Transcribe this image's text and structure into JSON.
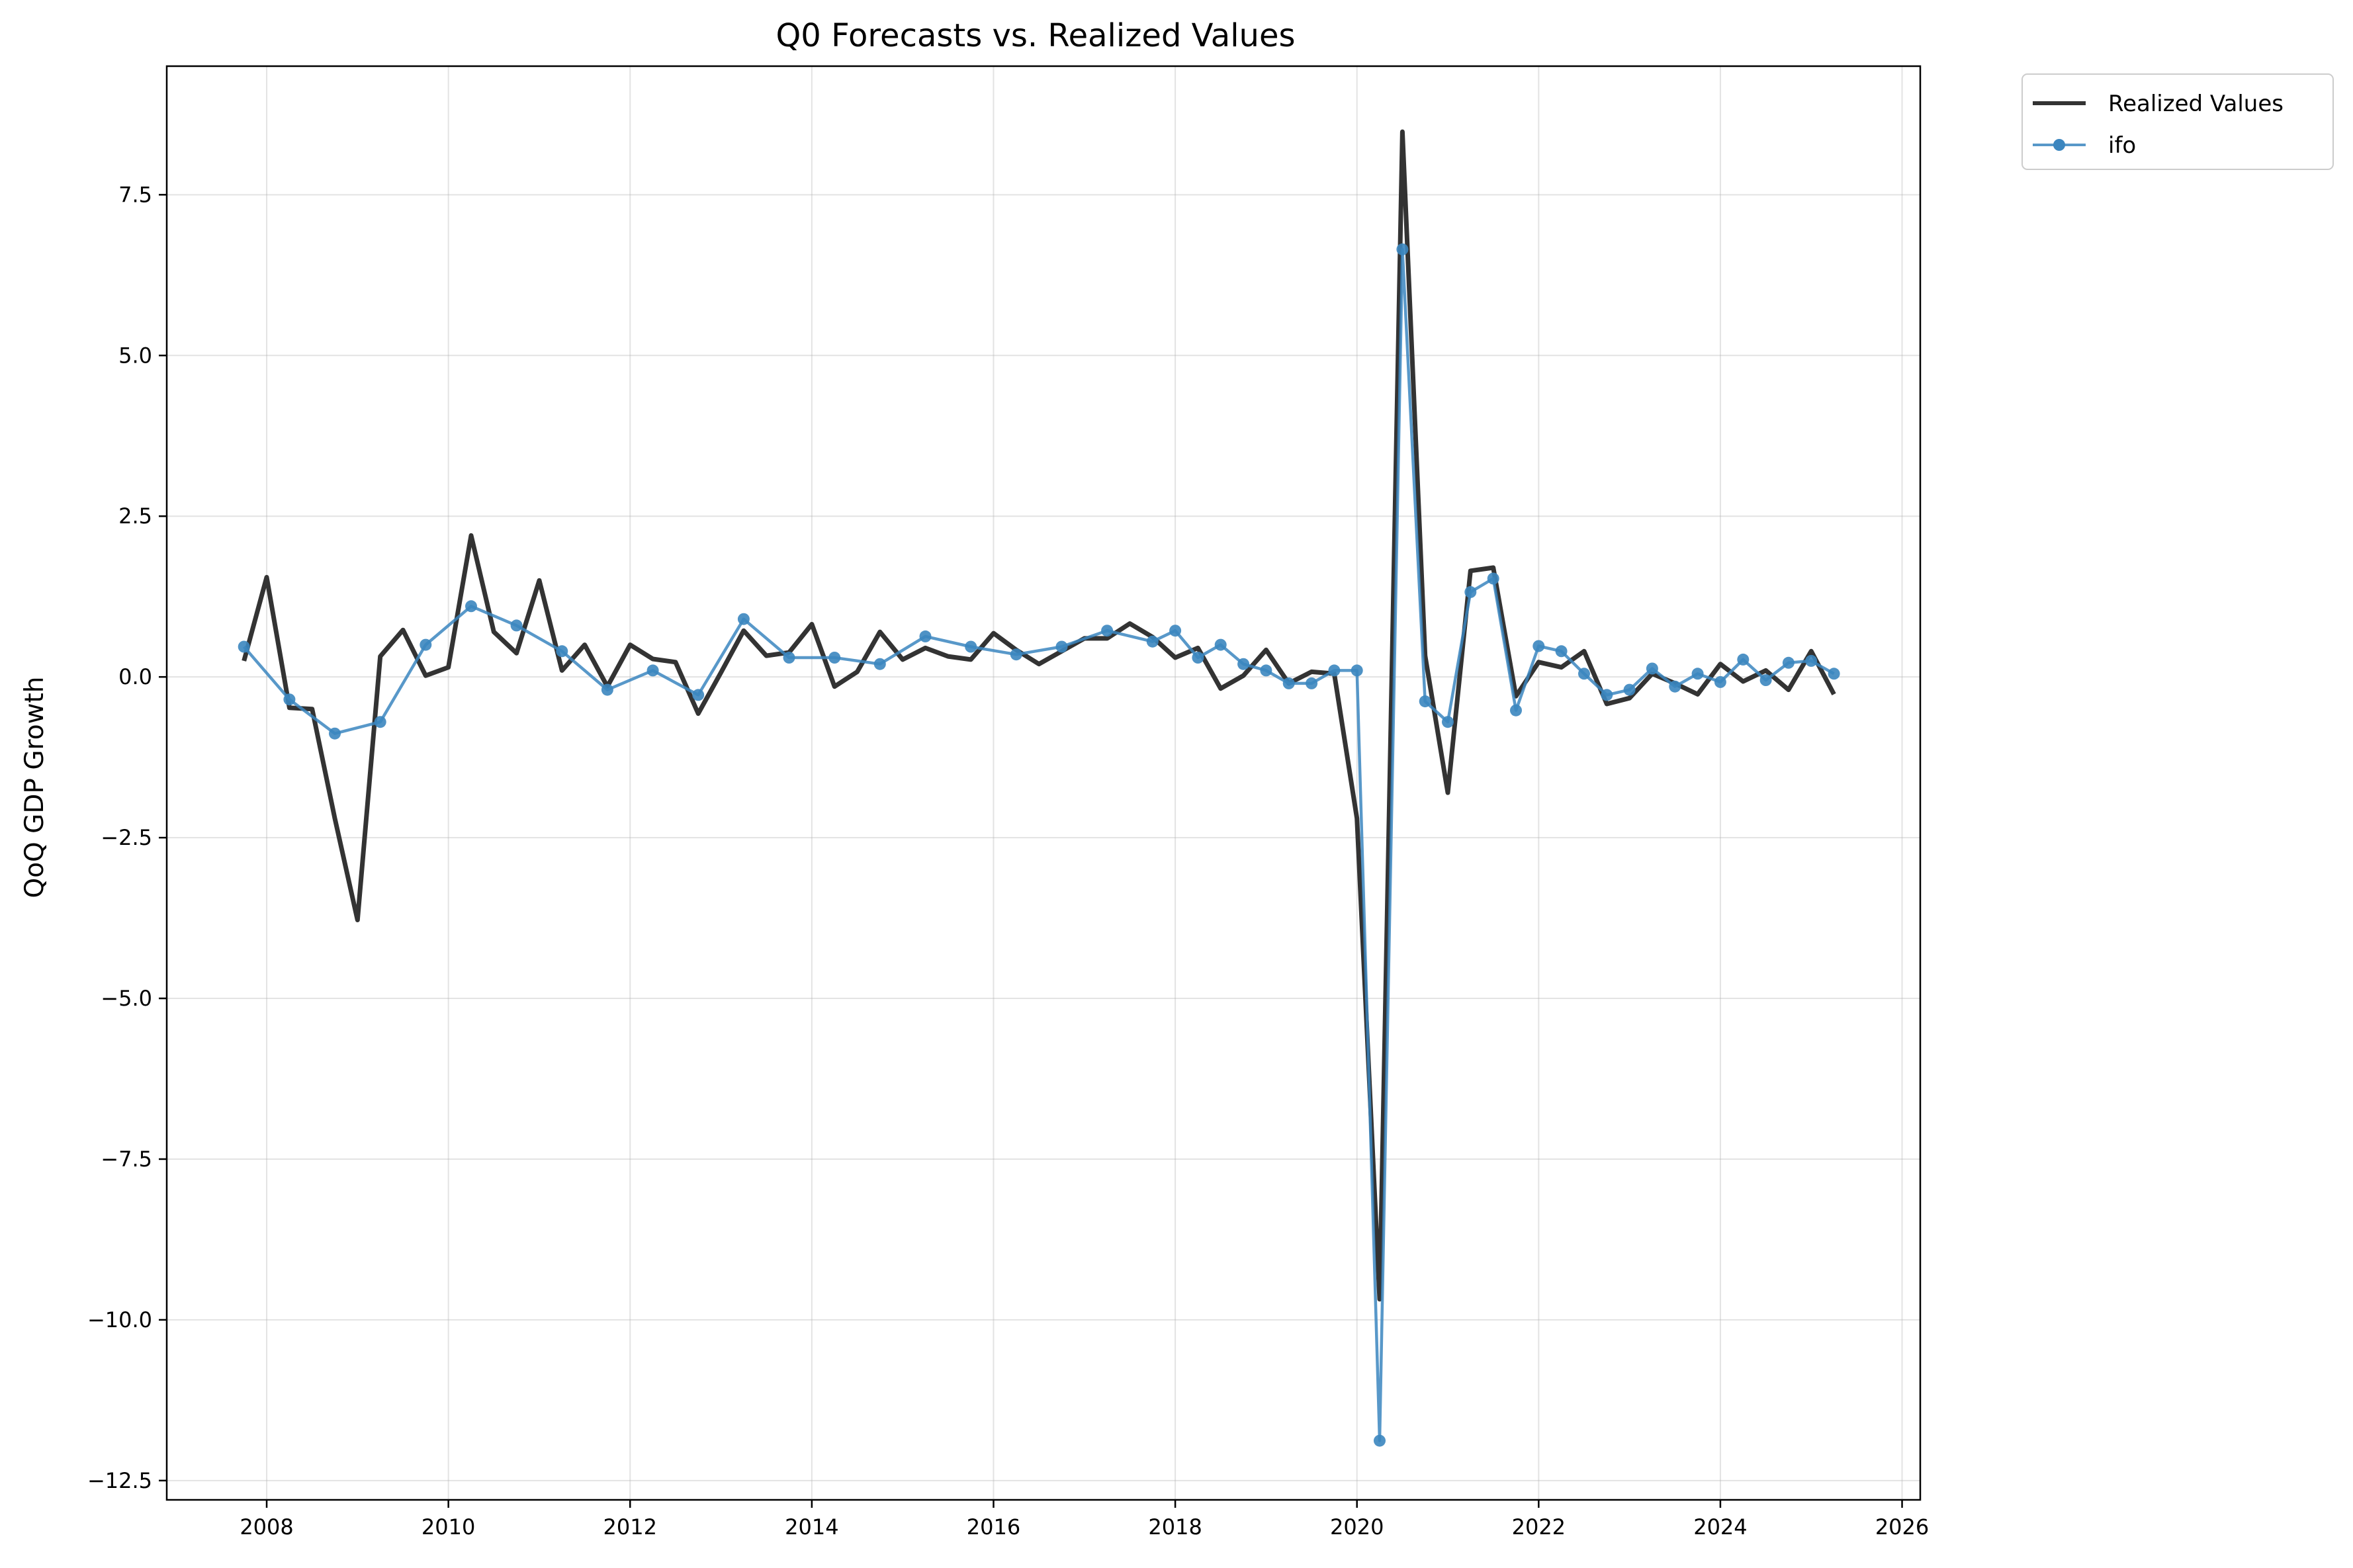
{
  "chart_data": {
    "type": "line",
    "title": "Q0 Forecasts vs. Realized Values",
    "xlabel": "",
    "ylabel": "QoQ GDP Growth",
    "xlim": [
      2006.9,
      2026.2
    ],
    "ylim": [
      -12.8,
      9.5
    ],
    "x_ticks": [
      2008,
      2010,
      2012,
      2014,
      2016,
      2018,
      2020,
      2022,
      2024,
      2026
    ],
    "x_tick_labels": [
      "2008",
      "2010",
      "2012",
      "2014",
      "2016",
      "2018",
      "2020",
      "2022",
      "2024",
      "2026"
    ],
    "y_ticks": [
      7.5,
      5.0,
      2.5,
      0.0,
      -2.5,
      -5.0,
      -7.5,
      -10.0,
      -12.5
    ],
    "y_tick_labels": [
      "7.5",
      "5.0",
      "2.5",
      "0.0",
      "−2.5",
      "−5.0",
      "−7.5",
      "−10.0",
      "−12.5"
    ],
    "grid": true,
    "legend_position": "outside-top-right",
    "series": [
      {
        "name": "Realized Values",
        "color": "#333333",
        "style": "line",
        "x": [
          2007.75,
          2008.0,
          2008.25,
          2008.5,
          2008.75,
          2009.0,
          2009.25,
          2009.5,
          2009.75,
          2010.0,
          2010.25,
          2010.5,
          2010.75,
          2011.0,
          2011.25,
          2011.5,
          2011.75,
          2012.0,
          2012.25,
          2012.5,
          2012.75,
          2013.0,
          2013.25,
          2013.5,
          2013.75,
          2014.0,
          2014.25,
          2014.5,
          2014.75,
          2015.0,
          2015.25,
          2015.5,
          2015.75,
          2016.0,
          2016.25,
          2016.5,
          2016.75,
          2017.0,
          2017.25,
          2017.5,
          2017.75,
          2018.0,
          2018.25,
          2018.5,
          2018.75,
          2019.0,
          2019.25,
          2019.5,
          2019.75,
          2020.0,
          2020.25,
          2020.5,
          2020.75,
          2021.0,
          2021.25,
          2021.5,
          2021.75,
          2022.0,
          2022.25,
          2022.5,
          2022.75,
          2023.0,
          2023.25,
          2023.5,
          2023.75,
          2024.0,
          2024.25,
          2024.5,
          2024.75,
          2025.0,
          2025.25
        ],
        "values": [
          0.25,
          1.55,
          -0.48,
          -0.5,
          -2.2,
          -3.78,
          0.32,
          0.73,
          0.02,
          0.15,
          2.2,
          0.7,
          0.37,
          1.5,
          0.1,
          0.5,
          -0.15,
          0.5,
          0.28,
          0.23,
          -0.57,
          0.07,
          0.72,
          0.33,
          0.38,
          0.82,
          -0.15,
          0.08,
          0.7,
          0.27,
          0.45,
          0.32,
          0.27,
          0.68,
          0.42,
          0.2,
          0.4,
          0.6,
          0.6,
          0.83,
          0.62,
          0.3,
          0.45,
          -0.18,
          0.02,
          0.42,
          -0.1,
          0.08,
          0.05,
          -2.2,
          -9.68,
          8.48,
          0.33,
          -1.8,
          1.65,
          1.7,
          -0.3,
          0.23,
          0.15,
          0.4,
          -0.42,
          -0.33,
          0.05,
          -0.1,
          -0.27,
          0.2,
          -0.07,
          0.1,
          -0.2,
          0.4,
          -0.27
        ]
      },
      {
        "name": "ifo",
        "color": "#3b86bf",
        "style": "line-marker",
        "x": [
          2007.75,
          2008.25,
          2008.75,
          2009.25,
          2009.75,
          2010.25,
          2010.75,
          2011.25,
          2011.75,
          2012.25,
          2012.75,
          2013.25,
          2013.75,
          2014.25,
          2014.75,
          2015.25,
          2015.75,
          2016.25,
          2016.75,
          2017.25,
          2017.75,
          2018.0,
          2018.25,
          2018.5,
          2018.75,
          2019.0,
          2019.25,
          2019.5,
          2019.75,
          2020.0,
          2020.25,
          2020.5,
          2020.75,
          2021.0,
          2021.25,
          2021.5,
          2021.75,
          2022.0,
          2022.25,
          2022.5,
          2022.75,
          2023.0,
          2023.25,
          2023.5,
          2023.75,
          2024.0,
          2024.25,
          2024.5,
          2024.75,
          2025.0,
          2025.25
        ],
        "values": [
          0.47,
          -0.35,
          -0.88,
          -0.7,
          0.5,
          1.1,
          0.8,
          0.4,
          -0.2,
          0.1,
          -0.28,
          0.9,
          0.3,
          0.3,
          0.2,
          0.63,
          0.47,
          0.35,
          0.47,
          0.72,
          0.55,
          0.72,
          0.3,
          0.5,
          0.2,
          0.1,
          -0.1,
          -0.1,
          0.1,
          0.1,
          -11.88,
          6.65,
          -0.38,
          -0.7,
          1.32,
          1.53,
          -0.52,
          0.48,
          0.4,
          0.05,
          -0.28,
          -0.2,
          0.13,
          -0.15,
          0.05,
          -0.08,
          0.27,
          -0.05,
          0.22,
          0.25,
          0.05
        ]
      }
    ]
  }
}
